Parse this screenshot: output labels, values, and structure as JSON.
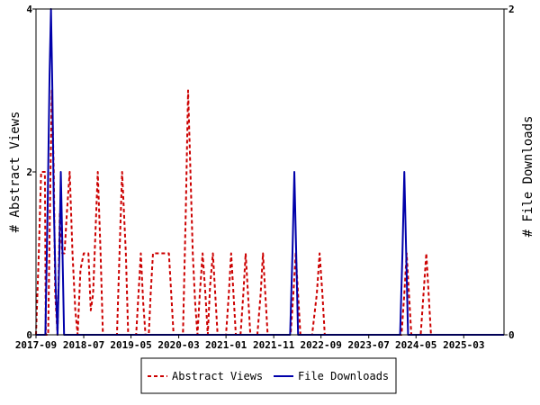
{
  "chart_data": {
    "type": "line",
    "title": "",
    "xlabel": "",
    "ylabel_left": "# Abstract Views",
    "ylabel_right": "# File Downloads",
    "ylim_left": [
      0,
      4
    ],
    "ylim_right": [
      0,
      2
    ],
    "yticks_left": [
      "0",
      "2",
      "4"
    ],
    "yticks_right": [
      "0",
      "2"
    ],
    "xlim": [
      0,
      100
    ],
    "xticks": [
      {
        "x": 0,
        "label": "2017-09"
      },
      {
        "x": 10.2,
        "label": "2018-07"
      },
      {
        "x": 20.3,
        "label": "2019-05"
      },
      {
        "x": 30.5,
        "label": "2020-03"
      },
      {
        "x": 40.6,
        "label": "2021-01"
      },
      {
        "x": 50.8,
        "label": "2021-11"
      },
      {
        "x": 60.9,
        "label": "2022-09"
      },
      {
        "x": 71.1,
        "label": "2023-07"
      },
      {
        "x": 81.2,
        "label": "2024-05"
      },
      {
        "x": 91.4,
        "label": "2025-03"
      }
    ],
    "legend_position": "bottom",
    "series": [
      {
        "name": "Abstract Views",
        "color": "#cc0000",
        "style": "dashed",
        "axis": "left",
        "points": [
          [
            0,
            0
          ],
          [
            0.6,
            1
          ],
          [
            1.1,
            2
          ],
          [
            1.9,
            2
          ],
          [
            2.1,
            0
          ],
          [
            2.6,
            0
          ],
          [
            3.1,
            2
          ],
          [
            3.4,
            3
          ],
          [
            3.8,
            2
          ],
          [
            4.1,
            0.5
          ],
          [
            4.6,
            0
          ],
          [
            5.1,
            1.5
          ],
          [
            5.6,
            1
          ],
          [
            6.1,
            1
          ],
          [
            6.6,
            1.5
          ],
          [
            7.2,
            2
          ],
          [
            7.8,
            1
          ],
          [
            8.4,
            0.3
          ],
          [
            8.9,
            0
          ],
          [
            9.5,
            0.8
          ],
          [
            10.2,
            1
          ],
          [
            11.2,
            1
          ],
          [
            11.7,
            0.3
          ],
          [
            12.2,
            0.5
          ],
          [
            13.2,
            2
          ],
          [
            13.8,
            1
          ],
          [
            14.3,
            0
          ],
          [
            17.3,
            0
          ],
          [
            18.4,
            2
          ],
          [
            19.2,
            1
          ],
          [
            19.7,
            0
          ],
          [
            21.4,
            0
          ],
          [
            21.9,
            0.5
          ],
          [
            22.4,
            1
          ],
          [
            22.9,
            0.4
          ],
          [
            23.4,
            0
          ],
          [
            24.1,
            0
          ],
          [
            24.5,
            0.5
          ],
          [
            25.0,
            1
          ],
          [
            27.2,
            1
          ],
          [
            28.4,
            1
          ],
          [
            29.4,
            0
          ],
          [
            31.4,
            0
          ],
          [
            32.0,
            1.5
          ],
          [
            32.5,
            3
          ],
          [
            33.0,
            2
          ],
          [
            33.5,
            1
          ],
          [
            34.0,
            0.4
          ],
          [
            34.5,
            0
          ],
          [
            35.0,
            0.5
          ],
          [
            35.6,
            1
          ],
          [
            36.2,
            0.5
          ],
          [
            36.7,
            0
          ],
          [
            37.2,
            0.6
          ],
          [
            37.8,
            1
          ],
          [
            38.3,
            0.5
          ],
          [
            38.8,
            0
          ],
          [
            40.6,
            0
          ],
          [
            41.2,
            0.5
          ],
          [
            41.7,
            1
          ],
          [
            42.2,
            0.5
          ],
          [
            42.7,
            0
          ],
          [
            43.7,
            0
          ],
          [
            44.3,
            0.5
          ],
          [
            44.8,
            1
          ],
          [
            45.3,
            0.5
          ],
          [
            45.8,
            0
          ],
          [
            47.3,
            0
          ],
          [
            48.0,
            0.5
          ],
          [
            48.5,
            1
          ],
          [
            49.0,
            0.5
          ],
          [
            49.5,
            0
          ],
          [
            54.4,
            0
          ],
          [
            55.0,
            0.5
          ],
          [
            55.5,
            1
          ],
          [
            56.0,
            0.5
          ],
          [
            56.5,
            0
          ],
          [
            59.0,
            0
          ],
          [
            60.0,
            0.5
          ],
          [
            60.6,
            1
          ],
          [
            61.2,
            0.5
          ],
          [
            61.7,
            0
          ],
          [
            78.1,
            0
          ],
          [
            78.7,
            0.5
          ],
          [
            79.2,
            1
          ],
          [
            79.7,
            0.5
          ],
          [
            80.2,
            0
          ],
          [
            82.2,
            0
          ],
          [
            82.8,
            0.5
          ],
          [
            83.4,
            1
          ],
          [
            83.9,
            0.5
          ],
          [
            84.4,
            0
          ],
          [
            100,
            0
          ]
        ]
      },
      {
        "name": "File Downloads",
        "color": "#0000aa",
        "style": "solid",
        "axis": "right",
        "points": [
          [
            0,
            0
          ],
          [
            2.0,
            0
          ],
          [
            2.5,
            0.8
          ],
          [
            2.9,
            1.6
          ],
          [
            3.2,
            2
          ],
          [
            3.5,
            1.5
          ],
          [
            3.8,
            0.8
          ],
          [
            4.2,
            0.3
          ],
          [
            4.6,
            0
          ],
          [
            5.0,
            0.5
          ],
          [
            5.3,
            1.0
          ],
          [
            5.6,
            0.6
          ],
          [
            6.0,
            0
          ],
          [
            6.4,
            0
          ],
          [
            54.3,
            0
          ],
          [
            54.8,
            0.5
          ],
          [
            55.2,
            1
          ],
          [
            55.6,
            0.5
          ],
          [
            56.0,
            0
          ],
          [
            77.8,
            0
          ],
          [
            78.3,
            0.5
          ],
          [
            78.7,
            1
          ],
          [
            79.1,
            0.5
          ],
          [
            79.5,
            0
          ],
          [
            100,
            0
          ]
        ]
      }
    ]
  }
}
